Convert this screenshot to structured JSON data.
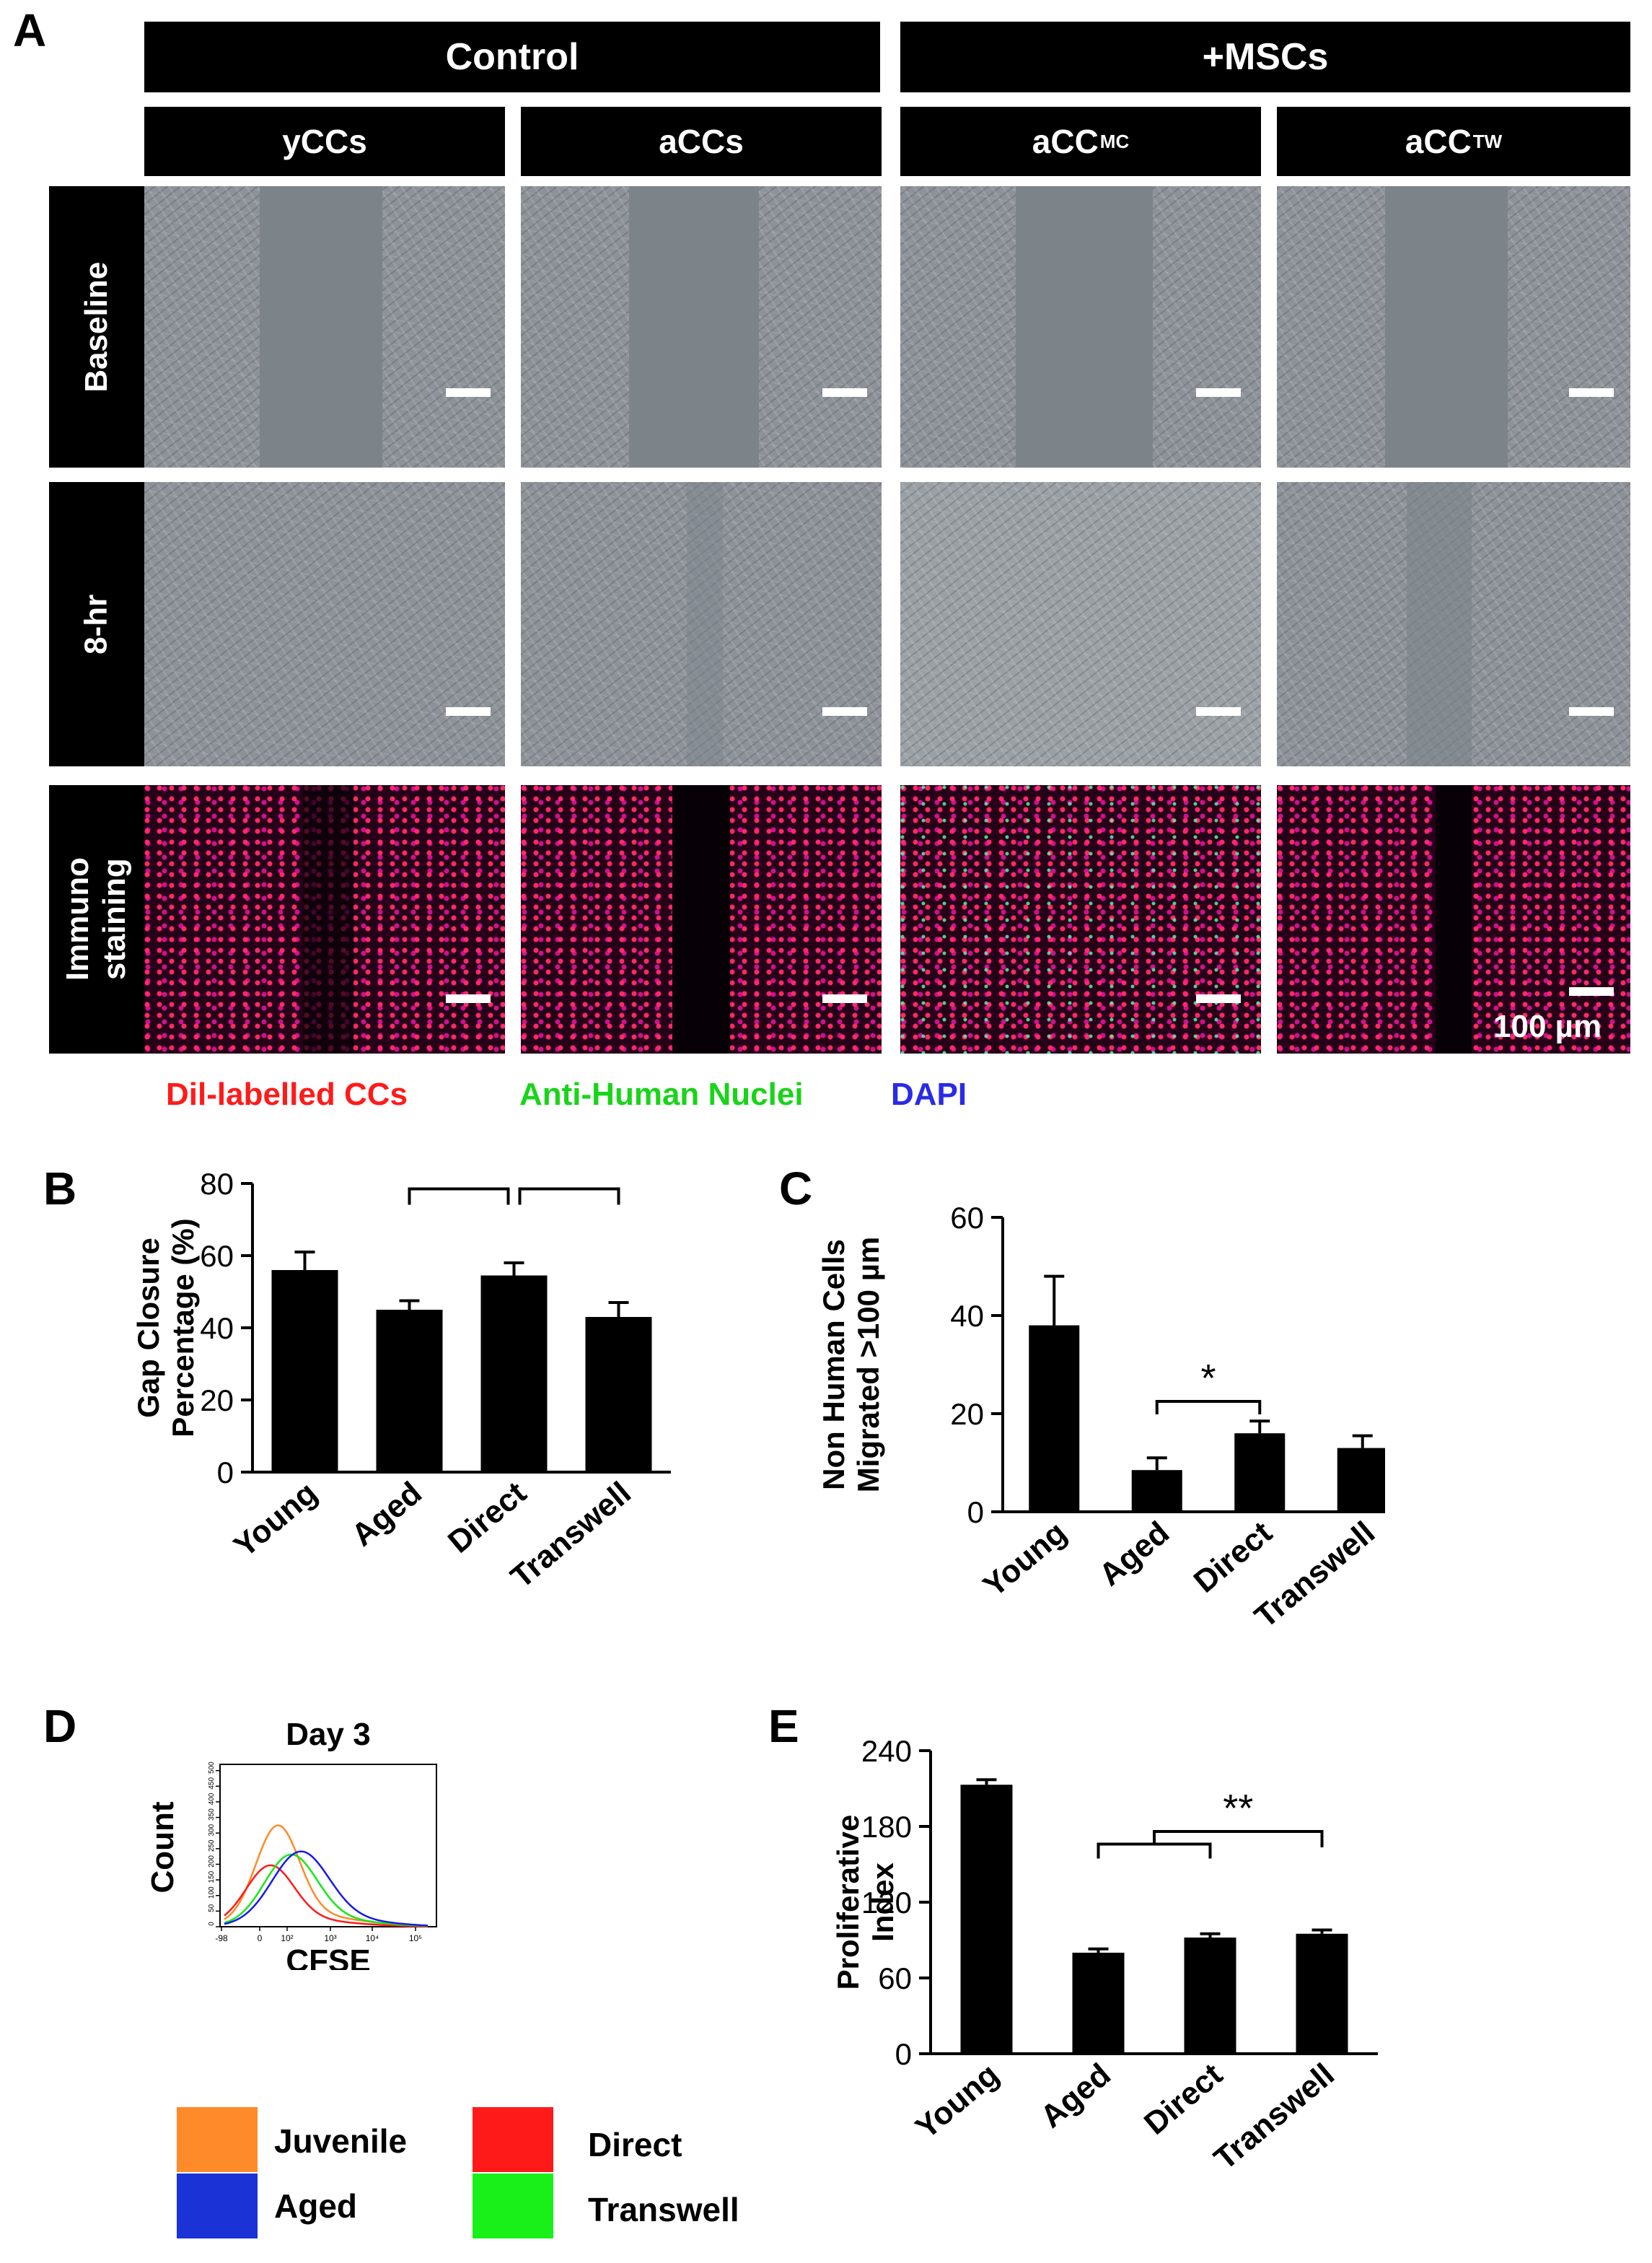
{
  "panels": {
    "a": "A",
    "b": "B",
    "c": "C",
    "d": "D",
    "e": "E"
  },
  "panel_a": {
    "groups": [
      "Control",
      "+MSCs"
    ],
    "columns": [
      {
        "base": "yCCs",
        "sup": ""
      },
      {
        "base": "aCCs",
        "sup": ""
      },
      {
        "base": "aCC",
        "sup": "MC"
      },
      {
        "base": "aCC",
        "sup": "TW"
      }
    ],
    "rows": [
      "Baseline",
      "8-hr",
      "Immuno staining"
    ],
    "scale_label": "100 µm",
    "legend": [
      {
        "text": "Dil-labelled  CCs",
        "color": "#ff1a1a"
      },
      {
        "text": "Anti-Human  Nuclei",
        "color": "#19d419"
      },
      {
        "text": "DAPI",
        "color": "#2a2ae8"
      }
    ]
  },
  "chart_data": [
    {
      "id": "B",
      "type": "bar",
      "categories": [
        "Young",
        "Aged",
        "Direct",
        "Transwell"
      ],
      "values": [
        56,
        45,
        54.5,
        43
      ],
      "errors": [
        5,
        2.5,
        3.5,
        4
      ],
      "ylabel": "Gap Closure Percentage (%)",
      "ylabel_lines": [
        "Gap Closure",
        "Percentage (%)"
      ],
      "ylim": [
        0,
        80
      ],
      "yticks": [
        0,
        20,
        40,
        60,
        80
      ],
      "significance": [
        {
          "from": "Aged",
          "to": "Direct",
          "label": "*"
        },
        {
          "from": "Direct",
          "to": "Transwell",
          "label": "**"
        }
      ],
      "colors": {
        "bar": "#000000"
      }
    },
    {
      "id": "C",
      "type": "bar",
      "categories": [
        "Young",
        "Aged",
        "Direct",
        "Transwell"
      ],
      "values": [
        38,
        8.5,
        16,
        13
      ],
      "errors": [
        10,
        2.5,
        2.5,
        2.5
      ],
      "ylabel": "Non Human Cells Migrated >100 µm",
      "ylabel_lines": [
        "Non Human Cells",
        "Migrated >100 µm"
      ],
      "ylim": [
        0,
        60
      ],
      "yticks": [
        0,
        20,
        40,
        60
      ],
      "significance": [
        {
          "from": "Aged",
          "to": "Direct",
          "label": "*"
        }
      ],
      "colors": {
        "bar": "#000000"
      }
    },
    {
      "id": "D",
      "type": "line",
      "title": "Day 3",
      "xlabel": "CFSE",
      "ylabel": "Count",
      "xscale": "log",
      "x_tick_labels": [
        "-98",
        "0",
        "10²",
        "10³",
        "10⁴",
        "10⁵"
      ],
      "y_tick_labels": [
        "0",
        "50",
        "100",
        "150",
        "200",
        "250",
        "300",
        "350",
        "400",
        "450",
        "500"
      ],
      "ylim": [
        0,
        520
      ],
      "series": [
        {
          "name": "Juvenile",
          "color": "#ff8a2a",
          "peak_x": 60,
          "peak_y": 330
        },
        {
          "name": "Direct",
          "color": "#ff1a1a",
          "peak_x": 40,
          "peak_y": 200
        },
        {
          "name": "Transwell",
          "color": "#19e619",
          "peak_x": 120,
          "peak_y": 235
        },
        {
          "name": "Aged",
          "color": "#1a1ae6",
          "peak_x": 200,
          "peak_y": 245
        }
      ],
      "legend": [
        {
          "name": "Juvenile",
          "color": "#ff8a2a"
        },
        {
          "name": "Aged",
          "color": "#1a32d6"
        },
        {
          "name": "Direct",
          "color": "#ff1a1a"
        },
        {
          "name": "Transwell",
          "color": "#19f019"
        }
      ]
    },
    {
      "id": "E",
      "type": "bar",
      "categories": [
        "Young",
        "Aged",
        "Direct",
        "Transwell"
      ],
      "values": [
        213,
        80,
        92,
        95
      ],
      "errors": [
        4,
        3,
        3,
        3
      ],
      "ylabel": "Proliferative Index",
      "ylabel_lines": [
        "Proliferative",
        "Index"
      ],
      "ylim": [
        0,
        240
      ],
      "yticks": [
        0,
        60,
        120,
        180,
        240
      ],
      "significance": [
        {
          "from": [
            "Aged",
            "Direct"
          ],
          "to": "Transwell",
          "label": "**"
        }
      ],
      "colors": {
        "bar": "#000000"
      }
    }
  ]
}
